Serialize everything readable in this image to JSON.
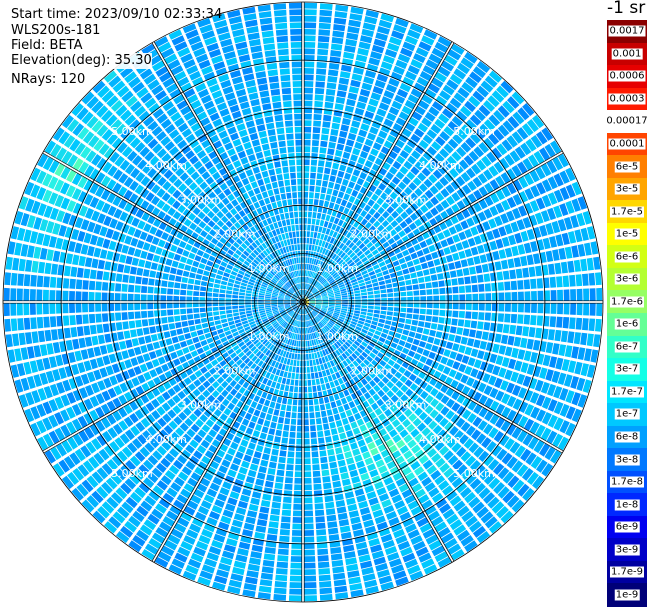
{
  "info": {
    "start_time": "Start time: 2023/09/10 02:33:34",
    "instrument": "WLS200s-181",
    "field": "Field: BETA",
    "elevation": "Elevation(deg): 35.30",
    "nrays": "NRays: 120"
  },
  "colorbar": {
    "title": "-1 sr",
    "ticks": [
      "0.0017",
      "0.001",
      "0.0006",
      "0.0003",
      "0.00017",
      "0.0001",
      "6e-5",
      "3e-5",
      "1.7e-5",
      "1e-5",
      "6e-6",
      "3e-6",
      "1.7e-6",
      "1e-6",
      "6e-7",
      "3e-7",
      "1.7e-7",
      "1e-7",
      "6e-8",
      "3e-8",
      "1.7e-8",
      "1e-8",
      "6e-9",
      "3e-9",
      "1.7e-9",
      "1e-9"
    ],
    "colors": [
      "#8b0000",
      "#c80000",
      "#e60000",
      "#ff1a00",
      "#ffffff",
      "#ff4500",
      "#ff7f00",
      "#ffa500",
      "#ffd700",
      "#ffff00",
      "#d2ff14",
      "#b4ff32",
      "#96ff64",
      "#64ff96",
      "#32ffc8",
      "#14ffe6",
      "#00e6ff",
      "#00c8ff",
      "#00a0ff",
      "#0078ff",
      "#0050ff",
      "#0028ff",
      "#0000f0",
      "#0000c8",
      "#0000a0",
      "#000078"
    ]
  },
  "chart_data": {
    "type": "heatmap",
    "projection": "polar (PPI scan)",
    "field": "BETA",
    "n_rays": 120,
    "elevation_deg": 35.3,
    "range_rings_km": [
      1.0,
      2.0,
      3.0,
      4.0,
      5.0
    ],
    "range_ring_labels": [
      "1.00km",
      "2.00km",
      "3.00km",
      "4.00km",
      "5.00km"
    ],
    "max_range_km": 6.2,
    "spoke_step_deg": 30,
    "colorscale": "log10 backscatter, 1e-9 to 0.0017 sr^-1",
    "dominant_range": "1e-8 to 1e-7 (blue to cyan)",
    "enhanced_regions": [
      {
        "azimuth_deg": 150,
        "range_km": [
          2.5,
          4.5
        ],
        "value_approx": "1.7e-7"
      },
      {
        "azimuth_deg": 300,
        "range_km": [
          5.0,
          6.2
        ],
        "value_approx": "1e-6"
      },
      {
        "azimuth_deg": 90,
        "range_km": [
          0.0,
          0.3
        ],
        "value_approx": "1e-5"
      }
    ]
  },
  "ring_label_azimuths_deg": [
    45,
    135,
    225,
    315
  ]
}
